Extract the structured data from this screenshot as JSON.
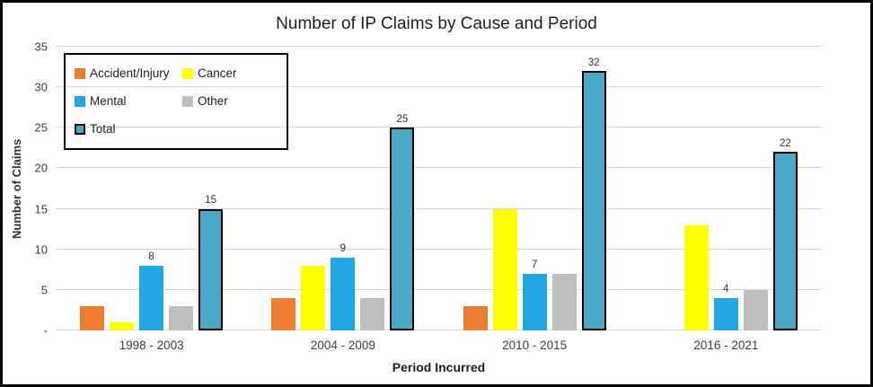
{
  "chart_data": {
    "type": "bar",
    "title": "Number of IP Claims by Cause and Period",
    "xlabel": "Period Incurred",
    "ylabel": "Number of Claims",
    "categories": [
      "1998 - 2003",
      "2004 - 2009",
      "2010 - 2015",
      "2016 - 2021"
    ],
    "series": [
      {
        "name": "Accident/Injury",
        "values": [
          3,
          4,
          3,
          0
        ],
        "color": "#ED7D31",
        "data_labels": false,
        "outlined": false
      },
      {
        "name": "Cancer",
        "values": [
          1,
          8,
          15,
          13
        ],
        "color": "#FFFF00",
        "data_labels": false,
        "outlined": false
      },
      {
        "name": "Mental",
        "values": [
          8,
          9,
          7,
          4
        ],
        "color": "#22A7E2",
        "data_labels": true,
        "outlined": false
      },
      {
        "name": "Other",
        "values": [
          3,
          4,
          7,
          5
        ],
        "color": "#BFBFBF",
        "data_labels": false,
        "outlined": false
      },
      {
        "name": "Total",
        "values": [
          15,
          25,
          32,
          22
        ],
        "color": "#4AA9C7",
        "data_labels": true,
        "outlined": true
      }
    ],
    "ylim": [
      0,
      35
    ],
    "ytick_step": 5,
    "ytick_labels": [
      "-",
      "5",
      "10",
      "15",
      "20",
      "25",
      "30",
      "35"
    ],
    "grid": true,
    "legend_position": "top-left-inside",
    "colors": {
      "gridline": "#d9d9d9",
      "tick_text": "#404040",
      "title_text": "#1f1f1f"
    }
  }
}
